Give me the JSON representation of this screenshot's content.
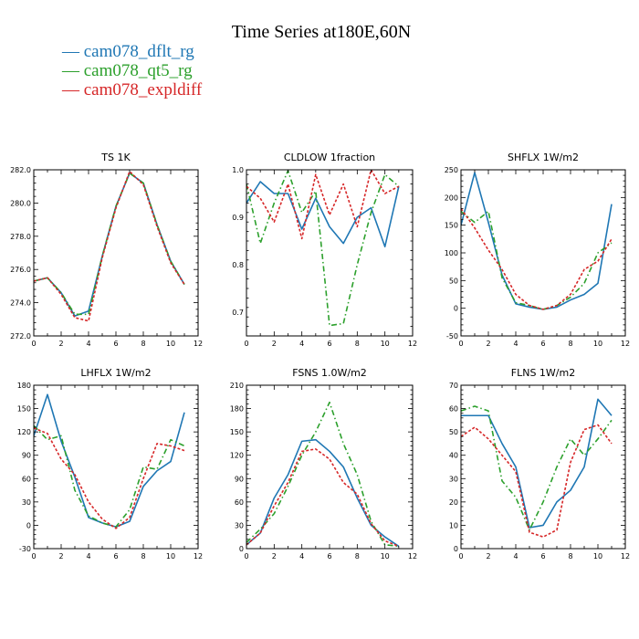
{
  "figure": {
    "title": "Time Series at180E,60N",
    "legend": [
      {
        "label": "— cam078_dflt_rg",
        "color": "#1f77b4"
      },
      {
        "label": "— cam078_qt5_rg",
        "color": "#2ca02c"
      },
      {
        "label": "— cam078_expldiff",
        "color": "#d62728"
      }
    ]
  },
  "chart_data": [
    {
      "type": "line",
      "title": "TS   1K",
      "x": [
        0,
        1,
        2,
        3,
        4,
        5,
        6,
        7,
        8,
        9,
        10,
        11
      ],
      "xlim": [
        0,
        12
      ],
      "xticks": [
        0,
        2,
        4,
        6,
        8,
        10,
        12
      ],
      "ylim": [
        272.0,
        282.0
      ],
      "yticks": [
        272.0,
        274.0,
        276.0,
        278.0,
        280.0,
        282.0
      ],
      "ytick_labels": [
        "272.0",
        "274.0",
        "276.0",
        "278.0",
        "280.0",
        "282.0"
      ],
      "series": [
        {
          "name": "cam078_dflt_rg",
          "color": "#1f77b4",
          "dash": "none",
          "values": [
            275.3,
            275.5,
            274.6,
            273.2,
            273.5,
            276.8,
            279.8,
            281.8,
            281.2,
            278.7,
            276.5,
            275.1
          ]
        },
        {
          "name": "cam078_qt5_rg",
          "color": "#2ca02c",
          "dash": "6,3,1.5,3",
          "values": [
            275.3,
            275.5,
            274.6,
            273.3,
            273.3,
            276.8,
            279.8,
            281.8,
            281.2,
            278.7,
            276.5,
            275.1
          ]
        },
        {
          "name": "cam078_expldiff",
          "color": "#d62728",
          "dash": "3,2",
          "values": [
            275.3,
            275.5,
            274.5,
            273.1,
            272.9,
            276.7,
            279.7,
            281.9,
            281.1,
            278.6,
            276.4,
            275.1
          ]
        }
      ]
    },
    {
      "type": "line",
      "title": "CLDLOW   1fraction",
      "x": [
        0,
        1,
        2,
        3,
        4,
        5,
        6,
        7,
        8,
        9,
        10,
        11
      ],
      "xlim": [
        0,
        12
      ],
      "xticks": [
        0,
        2,
        4,
        6,
        8,
        10,
        12
      ],
      "ylim": [
        0.65,
        1.0
      ],
      "yticks": [
        0.7,
        0.8,
        0.9,
        1.0
      ],
      "ytick_labels": [
        "0.7",
        "0.8",
        "0.9",
        "1.0"
      ],
      "series": [
        {
          "name": "cam078_dflt_rg",
          "color": "#1f77b4",
          "dash": "none",
          "values": [
            0.93,
            0.975,
            0.95,
            0.95,
            0.875,
            0.94,
            0.88,
            0.845,
            0.9,
            0.92,
            0.838,
            0.965
          ]
        },
        {
          "name": "cam078_qt5_rg",
          "color": "#2ca02c",
          "dash": "6,3,1.5,3",
          "values": [
            0.97,
            0.845,
            0.93,
            0.998,
            0.91,
            0.955,
            0.672,
            0.676,
            0.8,
            0.91,
            0.99,
            0.965
          ]
        },
        {
          "name": "cam078_expldiff",
          "color": "#d62728",
          "dash": "3,2",
          "values": [
            0.965,
            0.94,
            0.89,
            0.97,
            0.855,
            0.99,
            0.905,
            0.97,
            0.88,
            1.0,
            0.95,
            0.965
          ]
        }
      ]
    },
    {
      "type": "line",
      "title": "SHFLX   1W/m2",
      "x": [
        0,
        1,
        2,
        3,
        4,
        5,
        6,
        7,
        8,
        9,
        10,
        11
      ],
      "xlim": [
        0,
        12
      ],
      "xticks": [
        0,
        2,
        4,
        6,
        8,
        10,
        12
      ],
      "ylim": [
        -50,
        250
      ],
      "yticks": [
        -50,
        0,
        50,
        100,
        150,
        200,
        250
      ],
      "ytick_labels": [
        "-50",
        "0",
        "50",
        "100",
        "150",
        "200",
        "250"
      ],
      "series": [
        {
          "name": "cam078_dflt_rg",
          "color": "#1f77b4",
          "dash": "none",
          "values": [
            150,
            245,
            155,
            60,
            8,
            2,
            -2,
            2,
            15,
            25,
            45,
            188
          ]
        },
        {
          "name": "cam078_qt5_rg",
          "color": "#2ca02c",
          "dash": "6,3,1.5,3",
          "values": [
            175,
            155,
            175,
            55,
            10,
            5,
            -2,
            5,
            20,
            45,
            100,
            118
          ]
        },
        {
          "name": "cam078_expldiff",
          "color": "#d62728",
          "dash": "3,2",
          "values": [
            180,
            145,
            105,
            70,
            25,
            5,
            -2,
            5,
            25,
            70,
            85,
            125
          ]
        }
      ]
    },
    {
      "type": "line",
      "title": "LHFLX   1W/m2",
      "x": [
        0,
        1,
        2,
        3,
        4,
        5,
        6,
        7,
        8,
        9,
        10,
        11
      ],
      "xlim": [
        0,
        12
      ],
      "xticks": [
        0,
        2,
        4,
        6,
        8,
        10,
        12
      ],
      "ylim": [
        -30,
        180
      ],
      "yticks": [
        -30,
        0,
        30,
        60,
        90,
        120,
        150,
        180
      ],
      "ytick_labels": [
        "-30",
        "0",
        "30",
        "60",
        "90",
        "120",
        "150",
        "180"
      ],
      "series": [
        {
          "name": "cam078_dflt_rg",
          "color": "#1f77b4",
          "dash": "none",
          "values": [
            115,
            168,
            108,
            62,
            10,
            3,
            -2,
            5,
            50,
            70,
            82,
            145
          ]
        },
        {
          "name": "cam078_qt5_rg",
          "color": "#2ca02c",
          "dash": "6,3,1.5,3",
          "values": [
            128,
            110,
            115,
            45,
            12,
            3,
            -2,
            20,
            75,
            72,
            110,
            102
          ]
        },
        {
          "name": "cam078_expldiff",
          "color": "#d62728",
          "dash": "3,2",
          "values": [
            125,
            118,
            85,
            65,
            30,
            8,
            -4,
            10,
            60,
            105,
            102,
            96
          ]
        }
      ]
    },
    {
      "type": "line",
      "title": "FSNS   1.0W/m2",
      "x": [
        0,
        1,
        2,
        3,
        4,
        5,
        6,
        7,
        8,
        9,
        10,
        11
      ],
      "xlim": [
        0,
        12
      ],
      "xticks": [
        0,
        2,
        4,
        6,
        8,
        10,
        12
      ],
      "ylim": [
        0,
        210
      ],
      "yticks": [
        0,
        30,
        60,
        90,
        120,
        150,
        180,
        210
      ],
      "ytick_labels": [
        "0",
        "30",
        "60",
        "90",
        "120",
        "150",
        "180",
        "210"
      ],
      "series": [
        {
          "name": "cam078_dflt_rg",
          "color": "#1f77b4",
          "dash": "none",
          "values": [
            5,
            20,
            65,
            95,
            138,
            140,
            125,
            105,
            65,
            30,
            15,
            3
          ]
        },
        {
          "name": "cam078_qt5_rg",
          "color": "#2ca02c",
          "dash": "6,3,1.5,3",
          "values": [
            8,
            25,
            45,
            80,
            120,
            150,
            188,
            135,
            95,
            35,
            5,
            3
          ]
        },
        {
          "name": "cam078_expldiff",
          "color": "#d62728",
          "dash": "3,2",
          "values": [
            5,
            20,
            55,
            85,
            125,
            128,
            115,
            85,
            70,
            32,
            10,
            3
          ]
        }
      ]
    },
    {
      "type": "line",
      "title": "FLNS   1W/m2",
      "x": [
        0,
        1,
        2,
        3,
        4,
        5,
        6,
        7,
        8,
        9,
        10,
        11
      ],
      "xlim": [
        0,
        12
      ],
      "xticks": [
        0,
        2,
        4,
        6,
        8,
        10,
        12
      ],
      "ylim": [
        0,
        70
      ],
      "yticks": [
        0,
        10,
        20,
        30,
        40,
        50,
        60,
        70
      ],
      "ytick_labels": [
        "0",
        "10",
        "20",
        "30",
        "40",
        "50",
        "60",
        "70"
      ],
      "series": [
        {
          "name": "cam078_dflt_rg",
          "color": "#1f77b4",
          "dash": "none",
          "values": [
            57,
            57,
            57,
            45,
            35,
            9,
            10,
            20,
            25,
            35,
            64,
            57
          ]
        },
        {
          "name": "cam078_qt5_rg",
          "color": "#2ca02c",
          "dash": "6,3,1.5,3",
          "values": [
            59,
            61,
            59,
            29,
            22,
            8,
            20,
            35,
            47,
            40,
            47,
            55
          ]
        },
        {
          "name": "cam078_expldiff",
          "color": "#d62728",
          "dash": "3,2",
          "values": [
            48,
            52,
            47,
            40,
            33,
            7,
            5,
            8,
            37,
            51,
            53,
            45
          ]
        }
      ]
    }
  ]
}
